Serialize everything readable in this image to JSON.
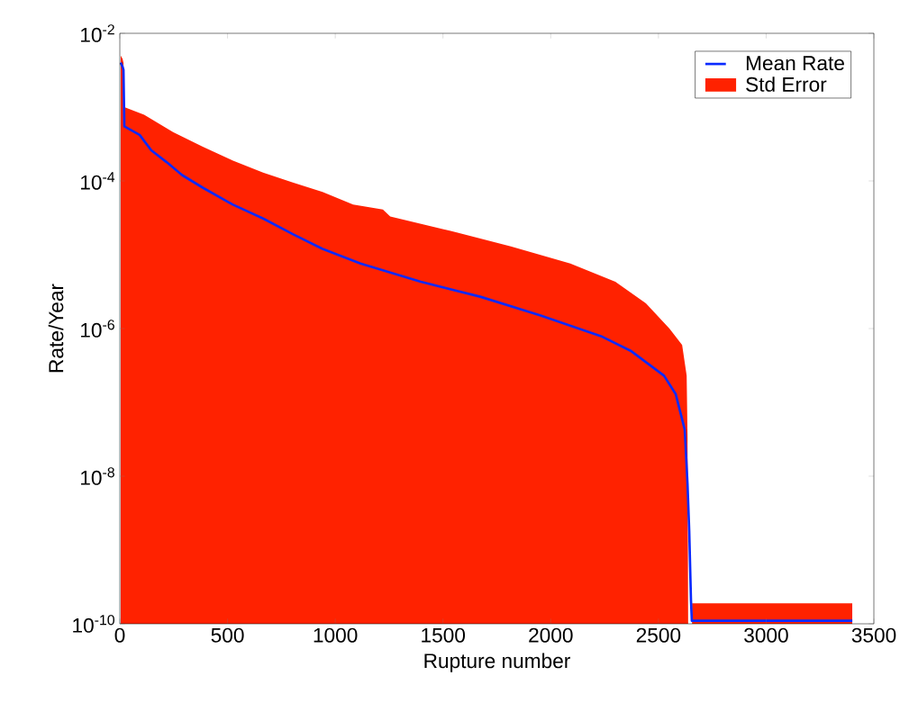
{
  "chart_data": {
    "type": "line",
    "xlabel": "Rupture number",
    "ylabel": "Rate/Year",
    "log": "y",
    "grid": false,
    "legend": "top right",
    "xlim": [
      0,
      3500
    ],
    "xticks": [
      0,
      500,
      1000,
      1500,
      2000,
      2500,
      3000,
      3500
    ],
    "ylim": [
      1e-10,
      0.01
    ],
    "yticks": [
      {
        "value": 1e-10,
        "label": "10$^{-10}$"
      },
      {
        "value": 1e-08,
        "label": "10$^{-8}$"
      },
      {
        "value": 1e-06,
        "label": "10$^{-6}$"
      },
      {
        "value": 0.0001,
        "label": "10$^{-4}$"
      },
      {
        "value": 0.01,
        "label": "10$^{-2}$"
      }
    ],
    "series": [
      {
        "name": "Std Error",
        "type": "area",
        "color": "#ff2200",
        "x": [
          4,
          13,
          17,
          21,
          113,
          247,
          385,
          523,
          665,
          803,
          941,
          1083,
          1221,
          1255,
          1535,
          1815,
          2091,
          2300,
          2442,
          2551,
          2610,
          2631,
          2635,
          2638,
          2646,
          2656,
          3400
        ],
        "values": [
          0.005,
          0.0045,
          0.004,
          0.001,
          0.00079,
          0.00046,
          0.00029,
          0.00019,
          0.00013,
          9.5e-05,
          7.1e-05,
          4.8e-05,
          4.1e-05,
          3.3e-05,
          2.1e-05,
          1.3e-05,
          7.6e-06,
          4.3e-06,
          2.2e-06,
          1e-06,
          6e-07,
          2.3e-07,
          3.6e-08,
          1e-10,
          null,
          1.9e-10,
          1.9e-10
        ]
      },
      {
        "name": "Mean Rate",
        "color": "#0a2aff",
        "x": [
          4,
          13,
          17,
          21,
          92,
          146,
          217,
          289,
          385,
          523,
          665,
          803,
          941,
          1117,
          1397,
          1673,
          1953,
          2233,
          2371,
          2526,
          2580,
          2622,
          2635,
          2643,
          2651,
          2655,
          3400
        ],
        "values": [
          0.004,
          0.0035,
          0.0032,
          0.00055,
          0.00042,
          0.00026,
          0.00018,
          0.00012,
          8.1e-05,
          4.8e-05,
          3.1e-05,
          1.9e-05,
          1.2e-05,
          7.6e-06,
          4.3e-06,
          2.7e-06,
          1.5e-06,
          7.9e-07,
          5e-07,
          2.3e-07,
          1.3e-07,
          4.3e-08,
          7.9e-09,
          1.8e-09,
          2.1e-10,
          1.1e-10,
          1.1e-10
        ]
      }
    ]
  }
}
